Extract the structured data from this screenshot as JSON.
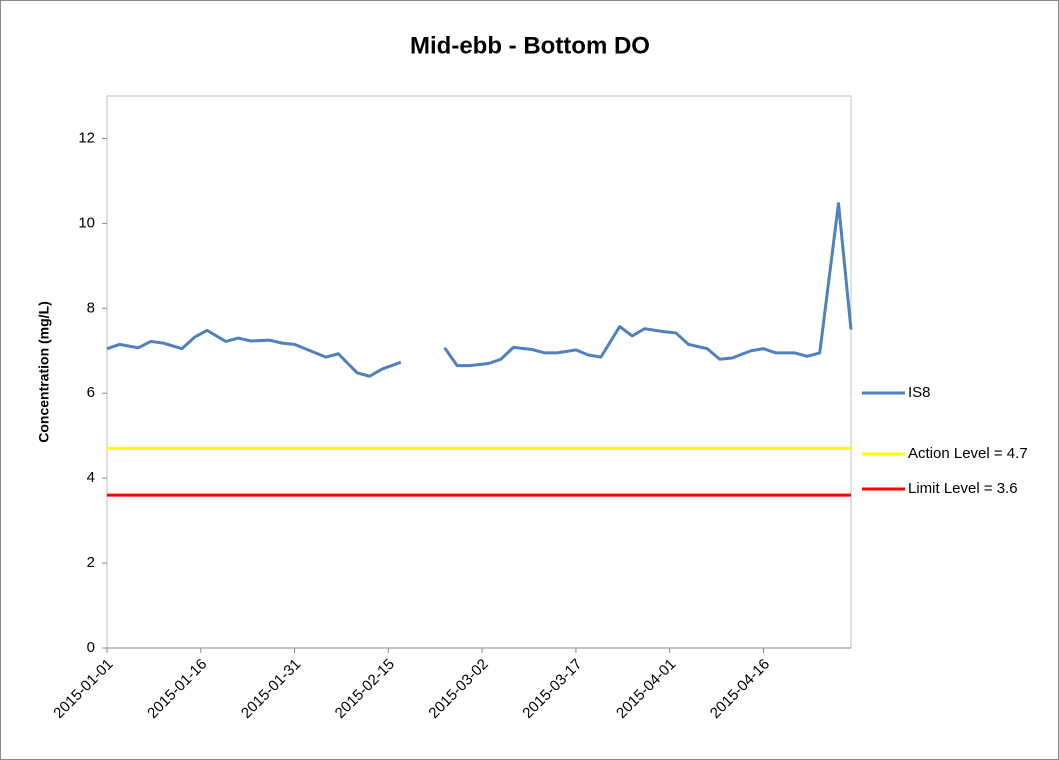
{
  "chart_data": {
    "type": "line",
    "title": "Mid-ebb - Bottom DO",
    "y_label": "Concentration (mg/L)",
    "xlim": [
      "2015-01-01",
      "2015-04-30"
    ],
    "xticks": [
      "2015-01-01",
      "2015-01-16",
      "2015-01-31",
      "2015-02-15",
      "2015-03-02",
      "2015-03-17",
      "2015-04-01",
      "2015-04-16"
    ],
    "ylim": [
      0,
      13
    ],
    "yticks": [
      0,
      2,
      4,
      6,
      8,
      10,
      12
    ],
    "grid": false,
    "legend": "right",
    "series": [
      {
        "name": "IS8",
        "color": "#4f81bd",
        "x": [
          "2015-01-01",
          "2015-01-03",
          "2015-01-06",
          "2015-01-08",
          "2015-01-10",
          "2015-01-13",
          "2015-01-15",
          "2015-01-17",
          "2015-01-20",
          "2015-01-22",
          "2015-01-24",
          "2015-01-27",
          "2015-01-29",
          "2015-01-31",
          "2015-02-03",
          "2015-02-05",
          "2015-02-07",
          "2015-02-10",
          "2015-02-12",
          "2015-02-14",
          "2015-02-17",
          "2015-02-19",
          "2015-02-21",
          "2015-02-24",
          "2015-02-26",
          "2015-02-28",
          "2015-03-03",
          "2015-03-05",
          "2015-03-07",
          "2015-03-10",
          "2015-03-12",
          "2015-03-14",
          "2015-03-17",
          "2015-03-19",
          "2015-03-21",
          "2015-03-24",
          "2015-03-26",
          "2015-03-28",
          "2015-03-31",
          "2015-04-02",
          "2015-04-04",
          "2015-04-07",
          "2015-04-09",
          "2015-04-11",
          "2015-04-14",
          "2015-04-16",
          "2015-04-18",
          "2015-04-21",
          "2015-04-23",
          "2015-04-25",
          "2015-04-28",
          "2015-04-30"
        ],
        "values": [
          7.05,
          7.15,
          7.07,
          7.22,
          7.18,
          7.05,
          7.32,
          7.48,
          7.22,
          7.3,
          7.23,
          7.25,
          7.18,
          7.15,
          6.97,
          6.85,
          6.93,
          6.48,
          6.4,
          6.57,
          6.73,
          null,
          null,
          7.07,
          6.65,
          6.65,
          6.7,
          6.8,
          7.08,
          7.03,
          6.95,
          6.95,
          7.02,
          6.9,
          6.85,
          7.57,
          7.35,
          7.52,
          7.45,
          7.42,
          7.15,
          7.05,
          6.8,
          6.83,
          7.0,
          7.05,
          6.95,
          6.95,
          6.87,
          6.95,
          10.47,
          7.5
        ]
      },
      {
        "name": "Action Level = 4.7",
        "color": "#ffff00",
        "x": [
          "2015-01-01",
          "2015-04-30"
        ],
        "values": [
          4.7,
          4.7
        ]
      },
      {
        "name": "Limit Level = 3.6",
        "color": "#ff0000",
        "x": [
          "2015-01-01",
          "2015-04-30"
        ],
        "values": [
          3.6,
          3.6
        ]
      }
    ]
  }
}
